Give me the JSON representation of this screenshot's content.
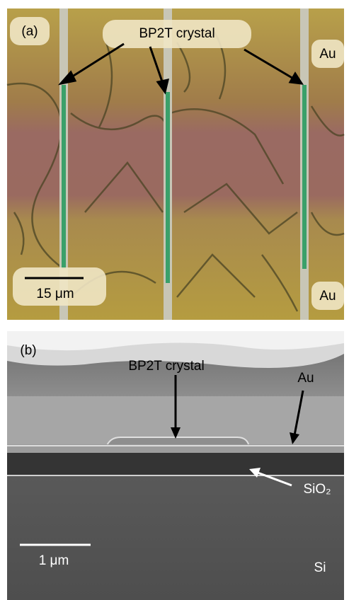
{
  "panels": [
    {
      "label": "(a)",
      "annotations": [
        "BP2T crystal",
        "Au",
        "Au"
      ],
      "scale_bar": "15 μm"
    },
    {
      "label": "(b)",
      "annotations": [
        "BP2T crystal",
        "Au",
        "SiO₂",
        "Si"
      ],
      "scale_bar": "1 μm"
    }
  ]
}
